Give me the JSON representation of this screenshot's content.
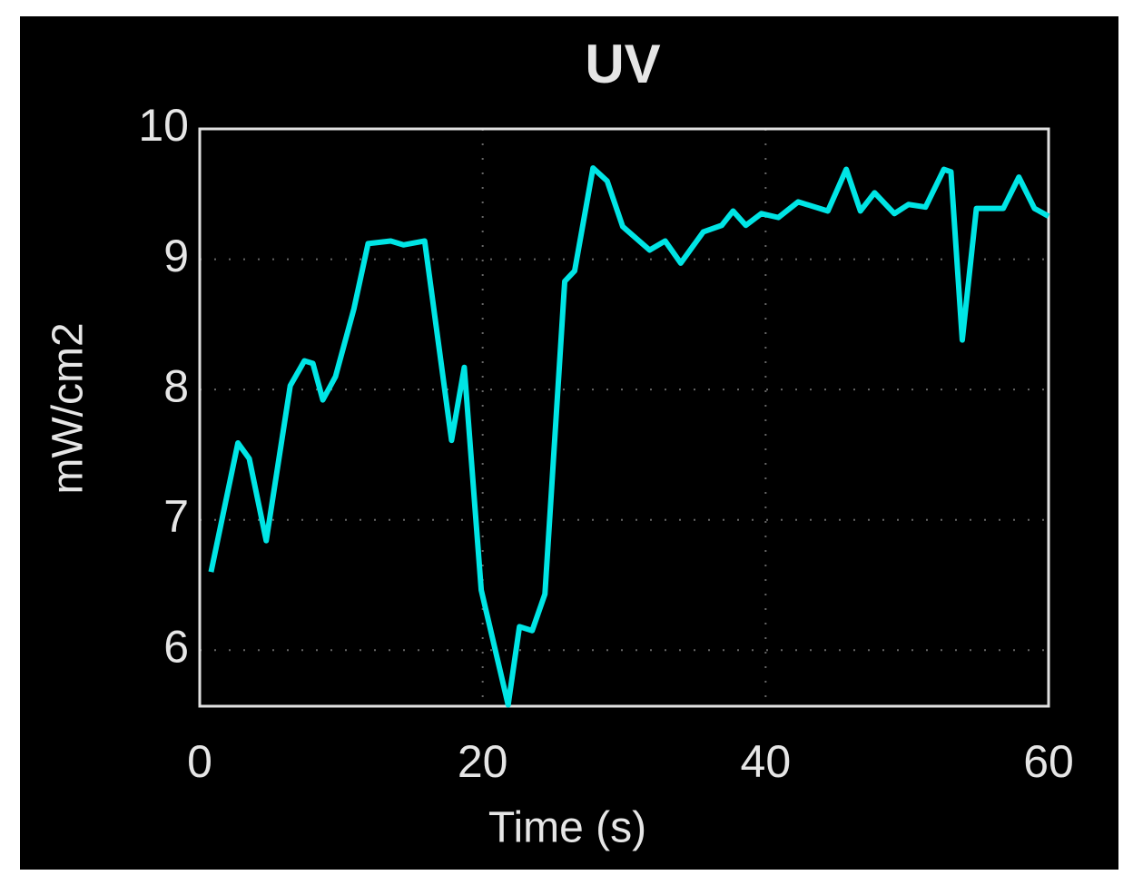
{
  "chart_data": {
    "type": "line",
    "title": "UV",
    "xlabel": "Time (s)",
    "ylabel": "mW/cm2",
    "x": [
      0.8,
      2.7,
      3.5,
      4.7,
      6.4,
      7.4,
      8.0,
      8.7,
      9.6,
      10.9,
      11.9,
      13.5,
      14.4,
      15.9,
      17.8,
      18.7,
      19.9,
      21.8,
      22.6,
      23.5,
      24.4,
      25.8,
      26.5,
      27.8,
      28.8,
      29.9,
      31.8,
      32.9,
      34.0,
      35.6,
      36.9,
      37.7,
      38.6,
      39.7,
      40.9,
      42.3,
      44.4,
      45.7,
      46.7,
      47.7,
      49.1,
      50.1,
      51.3,
      52.6,
      53.1,
      53.9,
      54.9,
      56.8,
      57.9,
      59.0,
      60
    ],
    "series": [
      {
        "name": "UV",
        "color": "#00e5e5",
        "values": [
          6.6,
          7.59,
          7.47,
          6.84,
          8.03,
          8.22,
          8.2,
          7.92,
          8.1,
          8.62,
          9.12,
          9.14,
          9.11,
          9.14,
          7.61,
          8.17,
          6.46,
          5.58,
          6.18,
          6.15,
          6.43,
          8.83,
          8.91,
          9.7,
          9.6,
          9.25,
          9.07,
          9.14,
          8.97,
          9.21,
          9.26,
          9.37,
          9.26,
          9.35,
          9.32,
          9.44,
          9.37,
          9.69,
          9.37,
          9.51,
          9.35,
          9.42,
          9.4,
          9.69,
          9.67,
          8.38,
          9.39,
          9.39,
          9.63,
          9.39,
          9.33
        ]
      }
    ],
    "xlim": [
      0,
      60
    ],
    "xticks": [
      0,
      20,
      40,
      60
    ],
    "ylim": [
      5.57,
      10
    ],
    "yticks": [
      6,
      7,
      8,
      9,
      10
    ],
    "grid": true
  }
}
